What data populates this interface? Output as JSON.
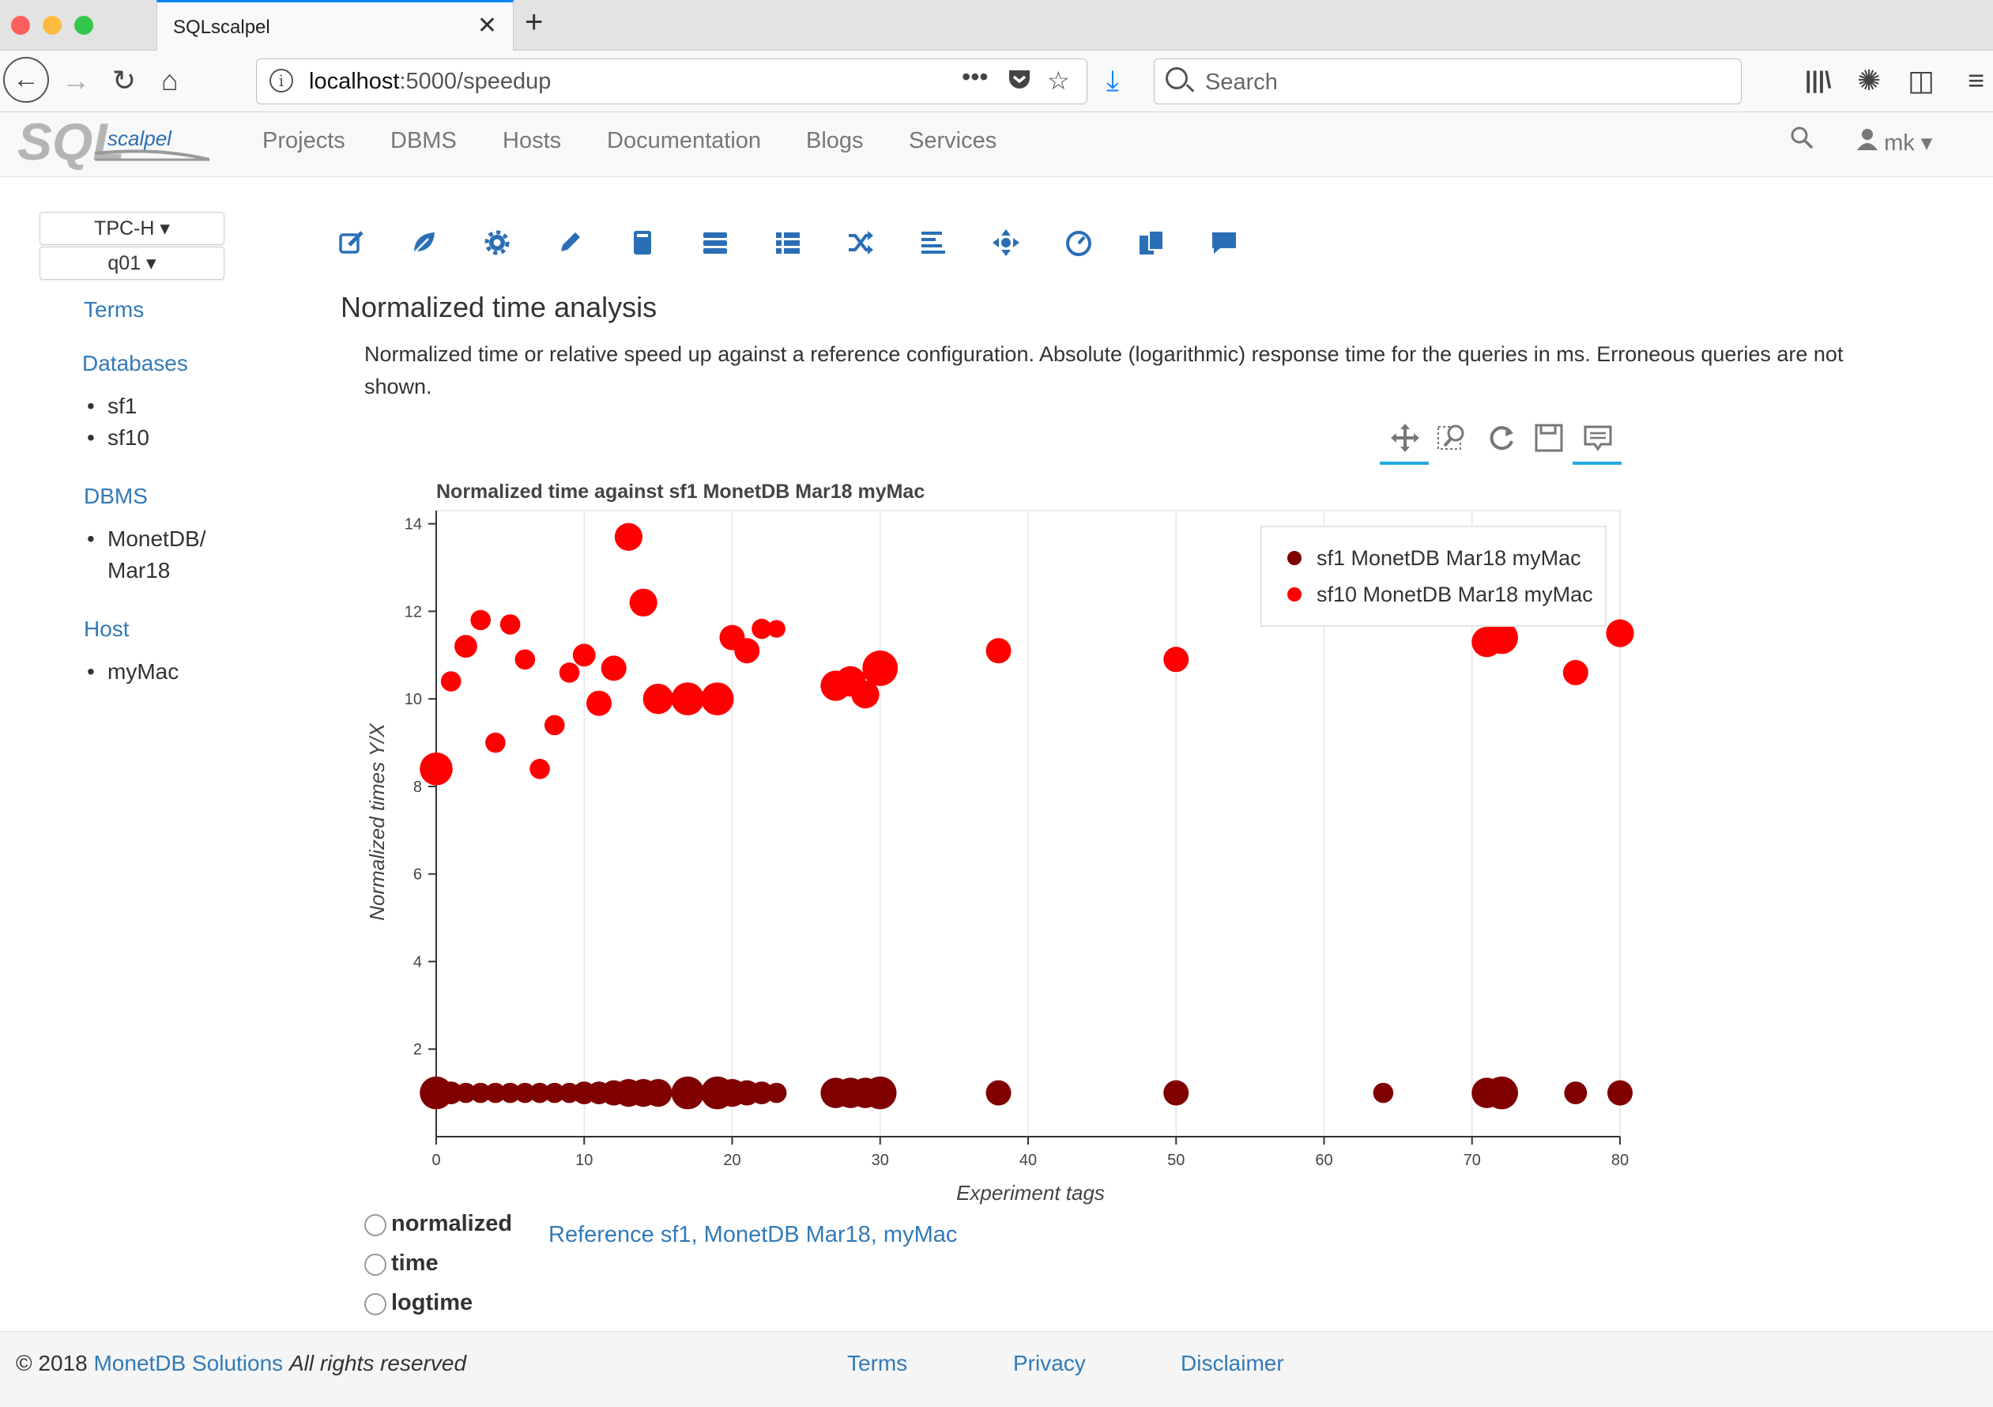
{
  "browser": {
    "tab_title": "SQLscalpel",
    "url_host": "localhost",
    "url_rest": ":5000/speedup",
    "search_placeholder": "Search"
  },
  "app": {
    "logo_main": "SQL",
    "logo_sub": "scalpel",
    "menu": [
      "Projects",
      "DBMS",
      "Hosts",
      "Documentation",
      "Blogs",
      "Services"
    ],
    "user": "mk"
  },
  "sidebar": {
    "project": "TPC-H",
    "query": "q01",
    "terms": "Terms",
    "databases_heading": "Databases",
    "databases": [
      "sf1",
      "sf10"
    ],
    "dbms_heading": "DBMS",
    "dbms": [
      "MonetDB/",
      "Mar18"
    ],
    "host_heading": "Host",
    "hosts": [
      "myMac"
    ]
  },
  "main": {
    "title": "Normalized time analysis",
    "description": "Normalized time or relative speed up against a reference configuration. Absolute (logarithmic) response time for the queries in ms. Erroneous queries are not shown.",
    "radios": [
      "normalized",
      "time",
      "logtime"
    ],
    "reference": "Reference sf1, MonetDB Mar18, myMac"
  },
  "footer": {
    "copyright": "© 2018",
    "company": "MonetDB Solutions",
    "rights": "All rights reserved",
    "links": [
      "Terms",
      "Privacy",
      "Disclaimer"
    ]
  },
  "colors": {
    "sf1": "#800000",
    "sf10": "#ff0000",
    "link": "#337ab7"
  },
  "chart_data": {
    "type": "scatter",
    "title": "Normalized time against sf1 MonetDB Mar18 myMac",
    "xlabel": "Experiment tags",
    "ylabel": "Normalized times Y/X",
    "xlim": [
      0,
      80
    ],
    "ylim": [
      0,
      14.3
    ],
    "xticks": [
      0,
      10,
      20,
      30,
      40,
      50,
      60,
      70,
      80
    ],
    "yticks": [
      2,
      4,
      6,
      8,
      10,
      12,
      14
    ],
    "legend_position": "top-right",
    "series": [
      {
        "name": "sf1 MonetDB Mar18 myMac",
        "color": "#800000",
        "points": [
          [
            0,
            1,
            13
          ],
          [
            1,
            1,
            9
          ],
          [
            2,
            1,
            8
          ],
          [
            3,
            1,
            8
          ],
          [
            4,
            1,
            8
          ],
          [
            5,
            1,
            8
          ],
          [
            6,
            1,
            8
          ],
          [
            7,
            1,
            8
          ],
          [
            8,
            1,
            8
          ],
          [
            9,
            1,
            8
          ],
          [
            10,
            1,
            9
          ],
          [
            11,
            1,
            9
          ],
          [
            12,
            1,
            10
          ],
          [
            13,
            1,
            11
          ],
          [
            14,
            1,
            11
          ],
          [
            15,
            1,
            11
          ],
          [
            17,
            1,
            13
          ],
          [
            19,
            1,
            13
          ],
          [
            20,
            1,
            11
          ],
          [
            21,
            1,
            10
          ],
          [
            22,
            1,
            9
          ],
          [
            23,
            1,
            8
          ],
          [
            27,
            1,
            12
          ],
          [
            28,
            1,
            12
          ],
          [
            29,
            1,
            12
          ],
          [
            30,
            1,
            13
          ],
          [
            38,
            1,
            10
          ],
          [
            50,
            1,
            10
          ],
          [
            64,
            1,
            8
          ],
          [
            71,
            1,
            12
          ],
          [
            72,
            1,
            13
          ],
          [
            77,
            1,
            9
          ],
          [
            80,
            1,
            10
          ]
        ]
      },
      {
        "name": "sf10 MonetDB Mar18 myMac",
        "color": "#ff0000",
        "points": [
          [
            0,
            8.4,
            13
          ],
          [
            1,
            10.4,
            8
          ],
          [
            2,
            11.2,
            9
          ],
          [
            3,
            11.8,
            8
          ],
          [
            4,
            9.0,
            8
          ],
          [
            5,
            11.7,
            8
          ],
          [
            6,
            10.9,
            8
          ],
          [
            7,
            8.4,
            8
          ],
          [
            8,
            9.4,
            8
          ],
          [
            9,
            10.6,
            8
          ],
          [
            10,
            11.0,
            9
          ],
          [
            11,
            9.9,
            10
          ],
          [
            12,
            10.7,
            10
          ],
          [
            13,
            13.7,
            11
          ],
          [
            14,
            12.2,
            11
          ],
          [
            15,
            10.0,
            12
          ],
          [
            17,
            10.0,
            13
          ],
          [
            19,
            10.0,
            13
          ],
          [
            20,
            11.4,
            10
          ],
          [
            21,
            11.1,
            10
          ],
          [
            22,
            11.6,
            8
          ],
          [
            23,
            11.6,
            7
          ],
          [
            27,
            10.3,
            12
          ],
          [
            28,
            10.4,
            12
          ],
          [
            29,
            10.1,
            11
          ],
          [
            30,
            10.7,
            14
          ],
          [
            38,
            11.1,
            10
          ],
          [
            50,
            10.9,
            10
          ],
          [
            71,
            11.3,
            12
          ],
          [
            72,
            11.4,
            13
          ],
          [
            77,
            10.6,
            10
          ],
          [
            80,
            11.5,
            11
          ]
        ]
      }
    ]
  }
}
